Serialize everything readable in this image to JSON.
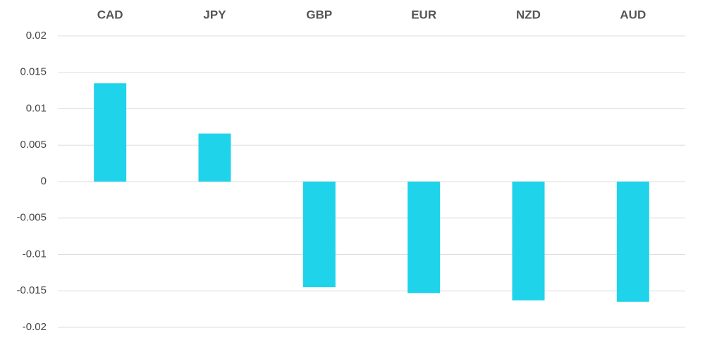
{
  "chart_data": {
    "type": "bar",
    "categories": [
      "CAD",
      "JPY",
      "GBP",
      "EUR",
      "NZD",
      "AUD"
    ],
    "values": [
      0.0135,
      0.0066,
      -0.0145,
      -0.0153,
      -0.0163,
      -0.0165
    ],
    "color": "#1fd3ea",
    "ylim": [
      -0.02,
      0.02
    ],
    "yticks": [
      0.02,
      0.015,
      0.01,
      0.005,
      0,
      -0.005,
      -0.01,
      -0.015,
      -0.02
    ],
    "grid": true,
    "category_axis_position": "top"
  }
}
